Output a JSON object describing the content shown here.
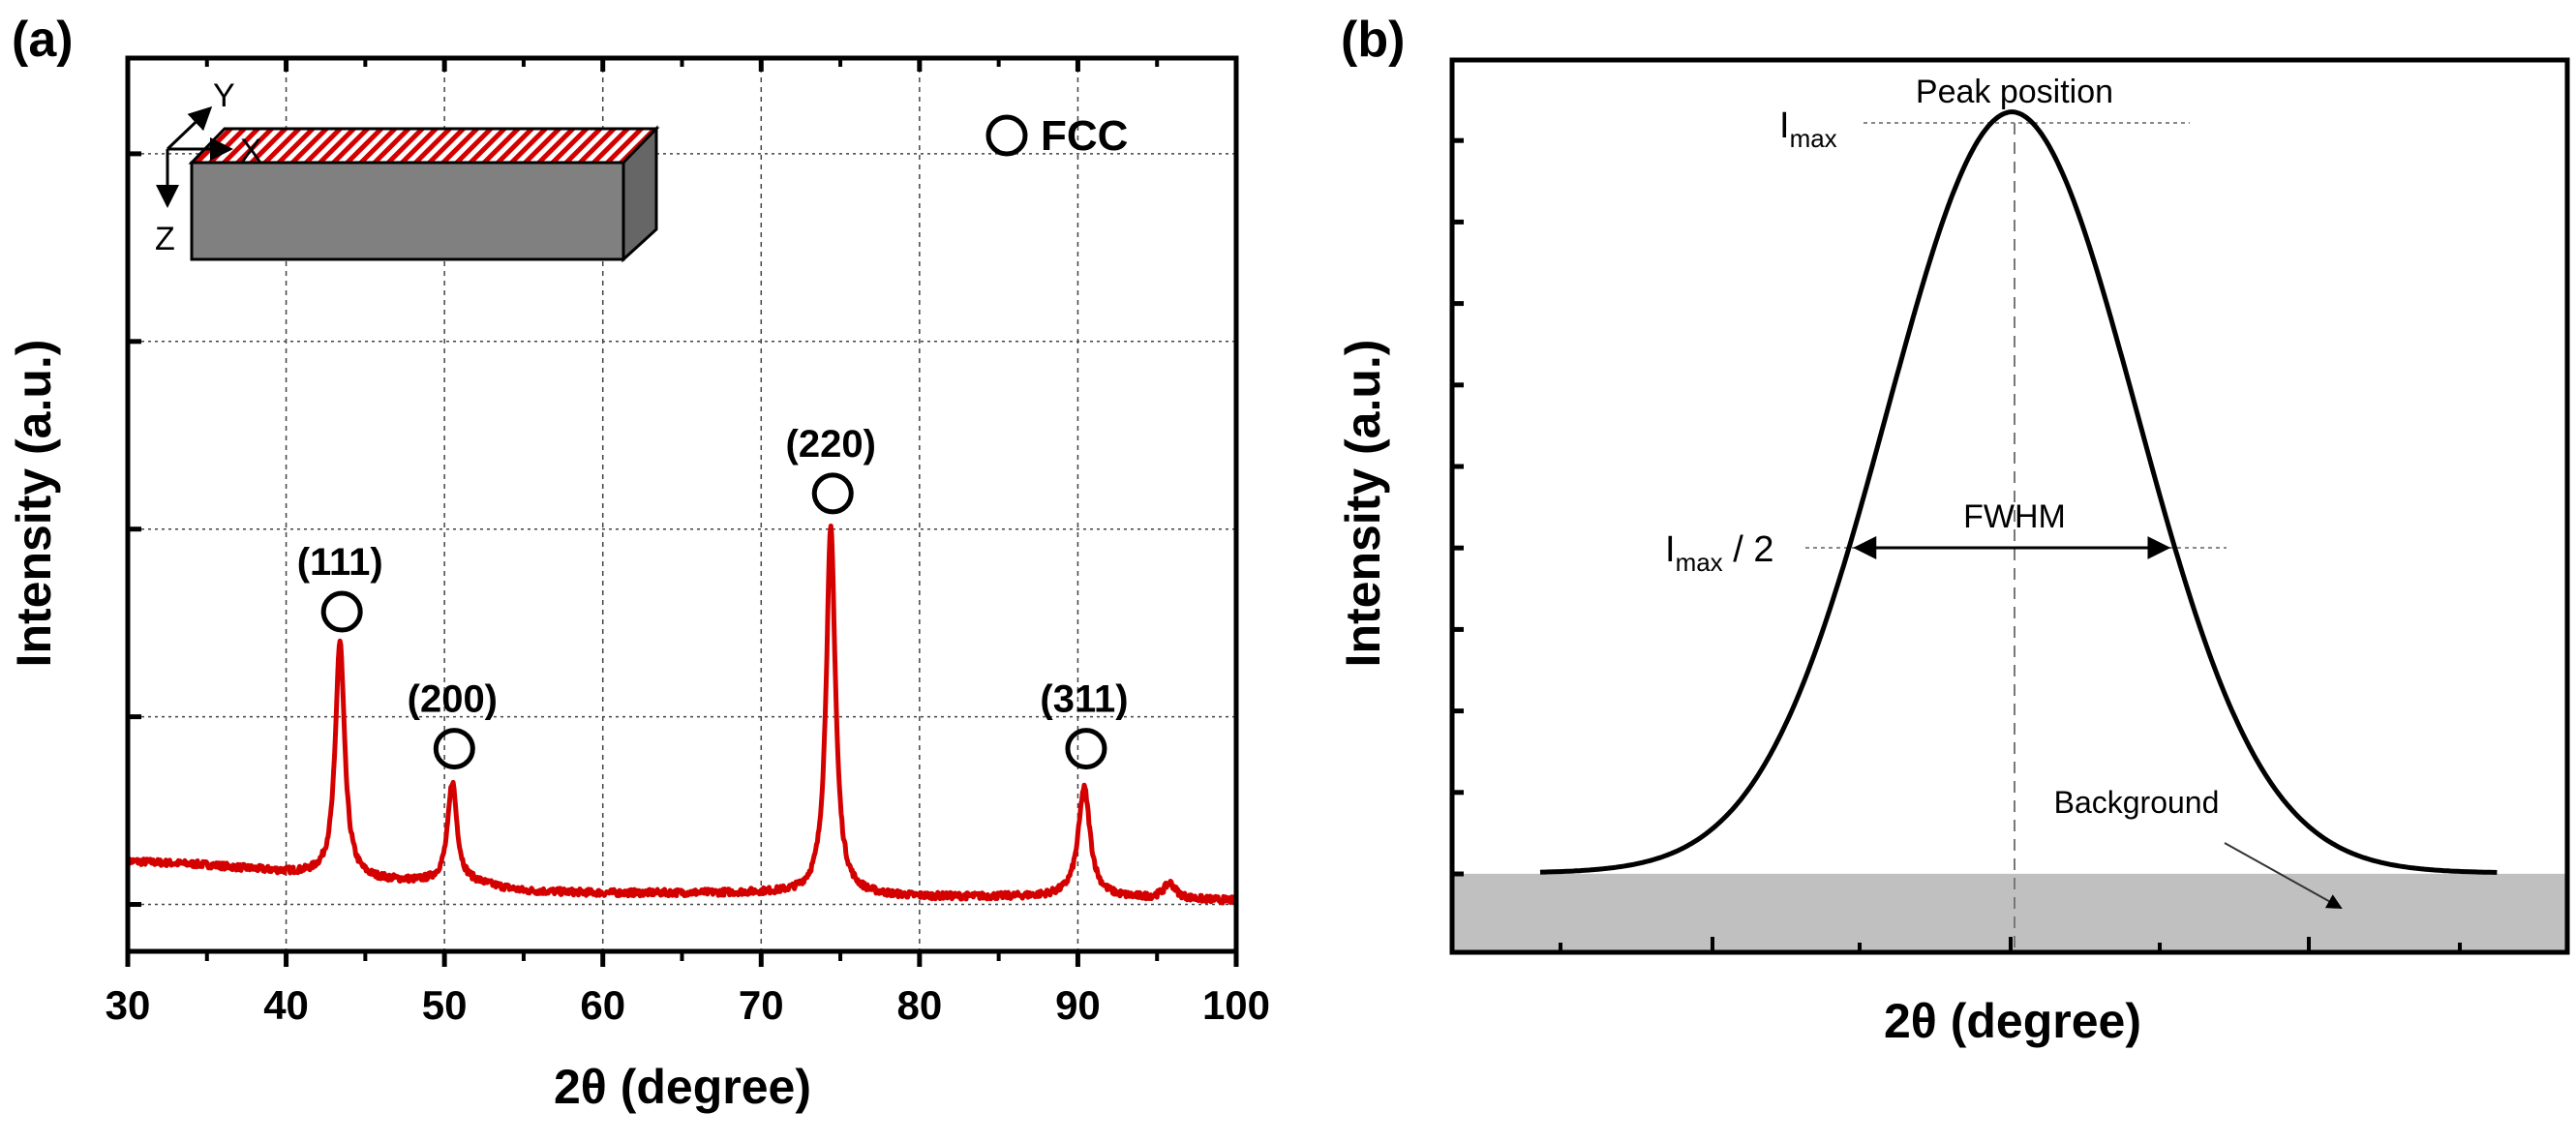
{
  "chart_data": [
    {
      "panel_label": "(a)",
      "type": "line",
      "title": "",
      "xlabel": "2θ (degree)",
      "ylabel": "Intensity (a.u.)",
      "xlim": [
        30,
        100
      ],
      "ylim": [
        0,
        4.76
      ],
      "xticks": [
        30,
        40,
        50,
        60,
        70,
        80,
        90,
        100
      ],
      "xminor_step": 5,
      "ygrid": [
        0.25,
        1.25,
        2.25,
        3.25,
        4.25
      ],
      "grid": true,
      "series_color": "#d40000",
      "background": [
        [
          30,
          0.48
        ],
        [
          35,
          0.46
        ],
        [
          40,
          0.42
        ],
        [
          45,
          0.38
        ],
        [
          48,
          0.37
        ],
        [
          52,
          0.36
        ],
        [
          55,
          0.32
        ],
        [
          60,
          0.31
        ],
        [
          70,
          0.31
        ],
        [
          80,
          0.29
        ],
        [
          90,
          0.29
        ],
        [
          100,
          0.27
        ]
      ],
      "peaks": [
        {
          "label": "(111)",
          "x": 43.4,
          "height": 1.65,
          "marker_y": 1.81
        },
        {
          "label": "(200)",
          "x": 50.5,
          "height": 0.9,
          "marker_y": 1.08
        },
        {
          "label": "(220)",
          "x": 74.4,
          "height": 2.25,
          "marker_y": 2.44
        },
        {
          "label": "(311)",
          "x": 90.4,
          "height": 0.87,
          "marker_y": 1.08
        },
        {
          "label": "",
          "x": 95.8,
          "height": 0.36,
          "marker_y": null
        }
      ],
      "legend": {
        "marker": "open-circle",
        "label": "FCC",
        "placement": "top-right"
      },
      "inset": {
        "axes": [
          "X",
          "Y",
          "Z"
        ],
        "top_face_color": "#d40000",
        "body_color": "#808080"
      }
    },
    {
      "panel_label": "(b)",
      "type": "line",
      "xlabel": "2θ (degree)",
      "ylabel": "Intensity (a.u.)",
      "xlim": [
        0,
        100
      ],
      "ylim": [
        0,
        100
      ],
      "curve": {
        "x_start": 7.9,
        "x_end": 93.7,
        "center": 50.2,
        "fwhm": 26.4,
        "imax": 93,
        "background": 8.8
      },
      "background_fill": "#c0c0c0",
      "annotations": {
        "peak_position": "Peak position",
        "imax": {
          "main": "I",
          "sub": "max"
        },
        "half": {
          "main": "I",
          "sub": "max",
          "suffix": " / 2"
        },
        "fwhm": "FWHM",
        "background": "Background"
      }
    }
  ]
}
